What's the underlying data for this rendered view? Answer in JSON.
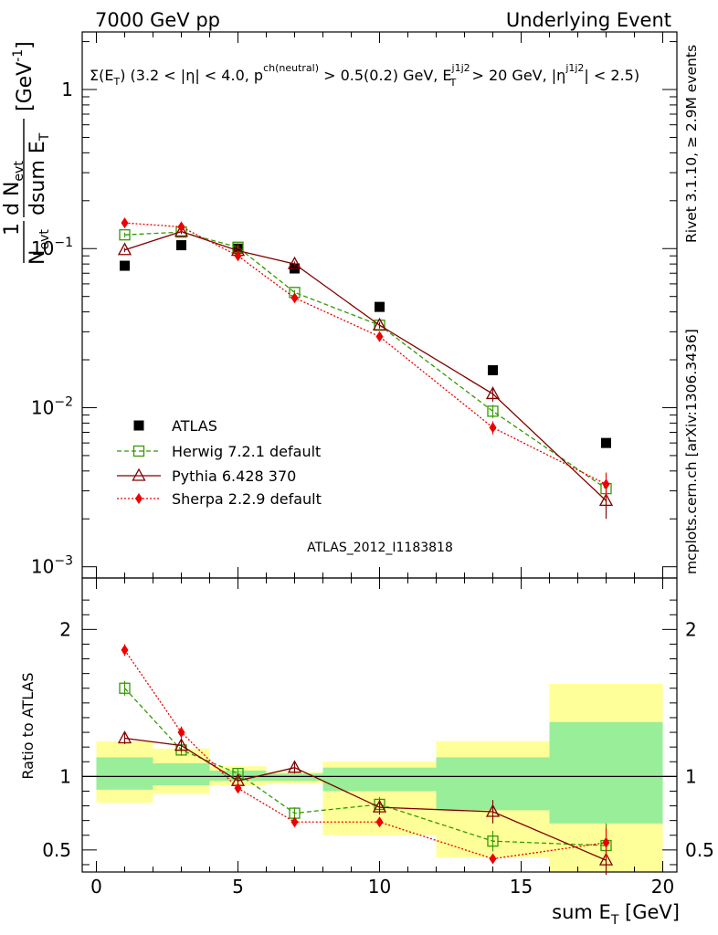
{
  "header": {
    "left": "7000 GeV pp",
    "right": "Underlying Event"
  },
  "side_labels": {
    "rivet": "Rivet 3.1.10, ≥ 2.9M events",
    "mcplots": "mcplots.cern.ch [arXiv:1306.3436]"
  },
  "watermark": "ATLAS_2012_I1183818",
  "chart_data": [
    {
      "type": "scatter",
      "panel": "main",
      "title": "Σ(E_T) (3.2 < |η| < 4.0, p^ch(neutral) > 0.5(0.2) GeV, E_T^j1j2 > 20 GeV, |η^j1j2| < 2.5)",
      "title_parts": {
        "a": "Σ(E",
        "a_sub": "T",
        "b": ") (3.2 < |η| < 4.0, p",
        "b_sup": "ch(neutral)",
        "c": " > 0.5(0.2) GeV, E",
        "c_sup": "j1j2",
        "c_sub": "T",
        "d": " > 20 GeV, |η",
        "d_sup": "j1j2",
        "e": "| < 2.5)"
      },
      "ylabel": "1/N_evt dN_evt/dsum E_T [GeV^-1]",
      "ylabel_parts": {
        "one": "1",
        "n": "N",
        "n_sub": "evt",
        "d": "d N",
        "d_sub": "evt",
        "dsum": "dsum E",
        "dsum_sub": "T",
        "unit": "[GeV",
        "unit_sup": "-1",
        "unit_close": "]"
      },
      "y_scale": "log",
      "ylim": [
        0.00085,
        2.3
      ],
      "xlim": [
        -0.5,
        20.5
      ],
      "y_ticks": [
        {
          "value": 1,
          "label": "1"
        },
        {
          "value": 0.1,
          "label": "10",
          "exp": "−1"
        },
        {
          "value": 0.01,
          "label": "10",
          "exp": "−2"
        },
        {
          "value": 0.001,
          "label": "10",
          "exp": "−3"
        }
      ],
      "legend_position": "lower-left",
      "series": [
        {
          "name": "ATLAS",
          "color": "#000000",
          "marker": "square-filled",
          "x": [
            1,
            3,
            5,
            7,
            10,
            14,
            18
          ],
          "y": [
            0.078,
            0.105,
            0.1,
            0.075,
            0.043,
            0.0172,
            0.006
          ]
        },
        {
          "name": "Herwig 7.2.1 default",
          "color": "#339900",
          "marker": "square-open",
          "line": "dashed",
          "x": [
            1,
            3,
            5,
            7,
            10,
            14,
            18
          ],
          "y": [
            0.122,
            0.127,
            0.102,
            0.053,
            0.033,
            0.0095,
            0.0031
          ],
          "err": [
            0.004,
            0.004,
            0.003,
            0.002,
            0.0015,
            0.0009,
            0.0008
          ]
        },
        {
          "name": "Pythia 6.428 370",
          "color": "#800000",
          "marker": "triangle-open",
          "line": "solid",
          "x": [
            1,
            3,
            5,
            7,
            10,
            14,
            18
          ],
          "y": [
            0.098,
            0.128,
            0.097,
            0.08,
            0.033,
            0.0122,
            0.0026
          ],
          "err": [
            0.003,
            0.004,
            0.003,
            0.003,
            0.0015,
            0.0013,
            0.0006
          ]
        },
        {
          "name": "Sherpa 2.2.9 default",
          "color": "#ee0000",
          "marker": "diamond-filled",
          "line": "dotted",
          "x": [
            1,
            3,
            5,
            7,
            10,
            14,
            18
          ],
          "y": [
            0.145,
            0.137,
            0.09,
            0.049,
            0.028,
            0.0075,
            0.0033
          ],
          "err": [
            0.004,
            0.004,
            0.003,
            0.002,
            0.0012,
            0.0007,
            0.0006
          ]
        }
      ]
    },
    {
      "type": "scatter",
      "panel": "ratio",
      "ylabel": "Ratio to ATLAS",
      "xlabel": "sum E_T [GeV]",
      "xlabel_parts": {
        "a": "sum E",
        "sub": "T",
        "b": " [GeV]"
      },
      "ylim": [
        0.35,
        2.35
      ],
      "xlim": [
        -0.5,
        20.5
      ],
      "x_ticks": [
        0,
        5,
        10,
        15,
        20
      ],
      "y_ticks": [
        0.5,
        1,
        2
      ],
      "reference_line": 1,
      "bands": [
        {
          "x0": 0,
          "x1": 2,
          "yellow": [
            0.82,
            1.24
          ],
          "green": [
            0.91,
            1.13
          ]
        },
        {
          "x0": 2,
          "x1": 4,
          "yellow": [
            0.88,
            1.19
          ],
          "green": [
            0.94,
            1.09
          ]
        },
        {
          "x0": 4,
          "x1": 6,
          "yellow": [
            0.94,
            1.07
          ],
          "green": [
            0.97,
            1.04
          ]
        },
        {
          "x0": 6,
          "x1": 8,
          "yellow": [
            0.95,
            1.03
          ],
          "green": [
            0.97,
            1.02
          ]
        },
        {
          "x0": 8,
          "x1": 12,
          "yellow": [
            0.6,
            1.1
          ],
          "green": [
            0.9,
            1.06
          ]
        },
        {
          "x0": 12,
          "x1": 16,
          "yellow": [
            0.45,
            1.24
          ],
          "green": [
            0.77,
            1.13
          ]
        },
        {
          "x0": 16,
          "x1": 20,
          "yellow": [
            0.35,
            1.63
          ],
          "green": [
            0.68,
            1.37
          ]
        }
      ],
      "series": [
        {
          "name": "Herwig 7.2.1 default",
          "color": "#339900",
          "x": [
            1,
            3,
            5,
            7,
            10,
            14,
            18
          ],
          "y": [
            1.6,
            1.18,
            1.02,
            0.75,
            0.81,
            0.56,
            0.53
          ],
          "err": [
            0.05,
            0.04,
            0.03,
            0.04,
            0.05,
            0.07,
            0.15
          ]
        },
        {
          "name": "Pythia 6.428 370",
          "color": "#800000",
          "x": [
            1,
            3,
            5,
            7,
            10,
            14,
            18
          ],
          "y": [
            1.26,
            1.21,
            0.97,
            1.06,
            0.79,
            0.76,
            0.43
          ],
          "err": [
            0.04,
            0.04,
            0.03,
            0.04,
            0.05,
            0.08,
            0.1
          ]
        },
        {
          "name": "Sherpa 2.2.9 default",
          "color": "#ee0000",
          "x": [
            1,
            3,
            5,
            7,
            10,
            14,
            18
          ],
          "y": [
            1.86,
            1.3,
            0.92,
            0.69,
            0.69,
            0.44,
            0.55
          ],
          "err": [
            0.04,
            0.04,
            0.03,
            0.03,
            0.03,
            0.02,
            0.1
          ]
        }
      ]
    }
  ]
}
